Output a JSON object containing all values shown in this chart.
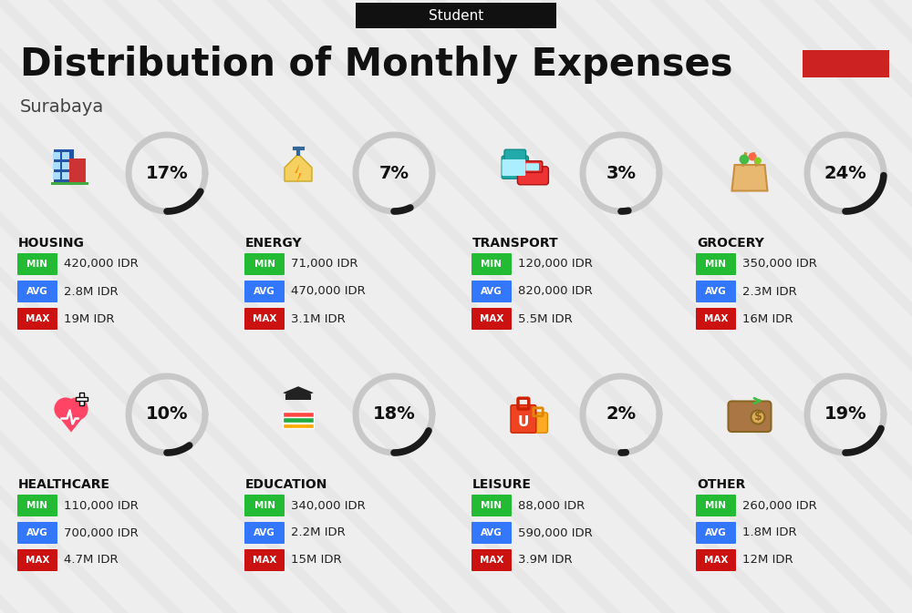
{
  "title": "Distribution of Monthly Expenses",
  "subtitle": "Surabaya",
  "header_label": "Student",
  "background_color": "#eeeeee",
  "categories": [
    {
      "name": "HOUSING",
      "pct": 17,
      "min": "420,000 IDR",
      "avg": "2.8M IDR",
      "max": "19M IDR",
      "icon": "housing",
      "row": 0,
      "col": 0
    },
    {
      "name": "ENERGY",
      "pct": 7,
      "min": "71,000 IDR",
      "avg": "470,000 IDR",
      "max": "3.1M IDR",
      "icon": "energy",
      "row": 0,
      "col": 1
    },
    {
      "name": "TRANSPORT",
      "pct": 3,
      "min": "120,000 IDR",
      "avg": "820,000 IDR",
      "max": "5.5M IDR",
      "icon": "transport",
      "row": 0,
      "col": 2
    },
    {
      "name": "GROCERY",
      "pct": 24,
      "min": "350,000 IDR",
      "avg": "2.3M IDR",
      "max": "16M IDR",
      "icon": "grocery",
      "row": 0,
      "col": 3
    },
    {
      "name": "HEALTHCARE",
      "pct": 10,
      "min": "110,000 IDR",
      "avg": "700,000 IDR",
      "max": "4.7M IDR",
      "icon": "healthcare",
      "row": 1,
      "col": 0
    },
    {
      "name": "EDUCATION",
      "pct": 18,
      "min": "340,000 IDR",
      "avg": "2.2M IDR",
      "max": "15M IDR",
      "icon": "education",
      "row": 1,
      "col": 1
    },
    {
      "name": "LEISURE",
      "pct": 2,
      "min": "88,000 IDR",
      "avg": "590,000 IDR",
      "max": "3.9M IDR",
      "icon": "leisure",
      "row": 1,
      "col": 2
    },
    {
      "name": "OTHER",
      "pct": 19,
      "min": "260,000 IDR",
      "avg": "1.8M IDR",
      "max": "12M IDR",
      "icon": "other",
      "row": 1,
      "col": 3
    }
  ],
  "min_color": "#22bb33",
  "avg_color": "#3377ff",
  "max_color": "#cc1111",
  "label_text_color": "#ffffff",
  "title_color": "#111111",
  "subtitle_color": "#444444",
  "arc_filled_color": "#1a1a1a",
  "arc_bg_color": "#c8c8c8",
  "red_box_color": "#cc2222",
  "header_bg_color": "#111111",
  "header_text_color": "#ffffff"
}
